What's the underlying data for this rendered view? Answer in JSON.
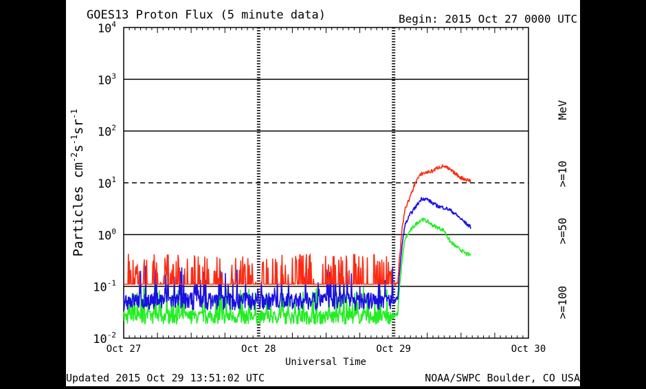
{
  "header": {
    "title": "GOES13 Proton Flux (5 minute data)",
    "begin": "Begin: 2015 Oct 27 0000 UTC"
  },
  "footer": {
    "updated": "Updated 2015 Oct 29 13:51:02 UTC",
    "credit": "NOAA/SWPC Boulder, CO USA"
  },
  "colors": {
    "ge10": "#ff2a12",
    "ge50": "#1a10e0",
    "ge100": "#22ee22",
    "axis": "#000000"
  },
  "chart_data": {
    "type": "line",
    "title": "GOES13 Proton Flux (5 minute data)",
    "xlabel": "Universal Time",
    "ylabel_parts": {
      "base": "Particles cm",
      "exp1": "-2",
      "s": "s",
      "exp2": "-1",
      "sr": "sr",
      "exp3": "-1"
    },
    "yscale": "log",
    "ylim": [
      0.01,
      10000
    ],
    "xlim": [
      "2015-10-27T00:00",
      "2015-10-30T00:00"
    ],
    "x_ticks": [
      "Oct 27",
      "Oct 28",
      "Oct 29",
      "Oct 30"
    ],
    "y_ticks": [
      {
        "base": "10",
        "exp": "-2",
        "value": 0.01
      },
      {
        "base": "10",
        "exp": "-1",
        "value": 0.1
      },
      {
        "base": "10",
        "exp": "0",
        "value": 1
      },
      {
        "base": "10",
        "exp": "1",
        "value": 10
      },
      {
        "base": "10",
        "exp": "2",
        "value": 100
      },
      {
        "base": "10",
        "exp": "3",
        "value": 1000
      },
      {
        "base": "10",
        "exp": "4",
        "value": 10000
      }
    ],
    "threshold": {
      "value": 10,
      "style": "dashed"
    },
    "legend": {
      "unit": "MeV",
      "placement": "right-vertical"
    },
    "series": [
      {
        "name": ">=10",
        "color": "#ff2a12",
        "baseline_before_event": 0.11,
        "points": [
          [
            "2015-10-29T00:00",
            0.11
          ],
          [
            "2015-10-29T00:45",
            0.12
          ],
          [
            "2015-10-29T01:00",
            0.3
          ],
          [
            "2015-10-29T01:30",
            1.2
          ],
          [
            "2015-10-29T02:00",
            3.0
          ],
          [
            "2015-10-29T03:00",
            5.5
          ],
          [
            "2015-10-29T04:00",
            11.0
          ],
          [
            "2015-10-29T05:00",
            15.0
          ],
          [
            "2015-10-29T06:00",
            16.0
          ],
          [
            "2015-10-29T07:00",
            17.0
          ],
          [
            "2015-10-29T08:00",
            20.0
          ],
          [
            "2015-10-29T09:00",
            21.0
          ],
          [
            "2015-10-29T10:00",
            18.0
          ],
          [
            "2015-10-29T11:00",
            15.0
          ],
          [
            "2015-10-29T12:00",
            12.5
          ],
          [
            "2015-10-29T13:00",
            11.5
          ],
          [
            "2015-10-29T13:45",
            11.0
          ]
        ]
      },
      {
        "name": ">=50",
        "color": "#1a10e0",
        "baseline_before_event": 0.05,
        "points": [
          [
            "2015-10-29T00:00",
            0.05
          ],
          [
            "2015-10-29T00:45",
            0.06
          ],
          [
            "2015-10-29T01:00",
            0.15
          ],
          [
            "2015-10-29T01:30",
            0.6
          ],
          [
            "2015-10-29T02:00",
            1.5
          ],
          [
            "2015-10-29T03:00",
            2.5
          ],
          [
            "2015-10-29T04:00",
            3.5
          ],
          [
            "2015-10-29T05:00",
            5.0
          ],
          [
            "2015-10-29T06:00",
            4.8
          ],
          [
            "2015-10-29T07:00",
            4.0
          ],
          [
            "2015-10-29T08:00",
            3.5
          ],
          [
            "2015-10-29T09:00",
            3.3
          ],
          [
            "2015-10-29T10:00",
            3.0
          ],
          [
            "2015-10-29T11:00",
            2.5
          ],
          [
            "2015-10-29T12:00",
            2.0
          ],
          [
            "2015-10-29T13:00",
            1.6
          ],
          [
            "2015-10-29T13:45",
            1.4
          ]
        ]
      },
      {
        "name": ">=100",
        "color": "#22ee22",
        "baseline_before_event": 0.025,
        "points": [
          [
            "2015-10-29T00:00",
            0.025
          ],
          [
            "2015-10-29T00:45",
            0.03
          ],
          [
            "2015-10-29T01:00",
            0.08
          ],
          [
            "2015-10-29T01:30",
            0.3
          ],
          [
            "2015-10-29T02:00",
            0.8
          ],
          [
            "2015-10-29T03:00",
            1.2
          ],
          [
            "2015-10-29T04:00",
            1.6
          ],
          [
            "2015-10-29T05:00",
            2.0
          ],
          [
            "2015-10-29T06:00",
            1.8
          ],
          [
            "2015-10-29T07:00",
            1.5
          ],
          [
            "2015-10-29T08:00",
            1.35
          ],
          [
            "2015-10-29T09:00",
            1.2
          ],
          [
            "2015-10-29T10:00",
            0.75
          ],
          [
            "2015-10-29T11:00",
            0.6
          ],
          [
            "2015-10-29T12:00",
            0.5
          ],
          [
            "2015-10-29T13:00",
            0.42
          ],
          [
            "2015-10-29T13:45",
            0.4
          ]
        ]
      }
    ]
  }
}
